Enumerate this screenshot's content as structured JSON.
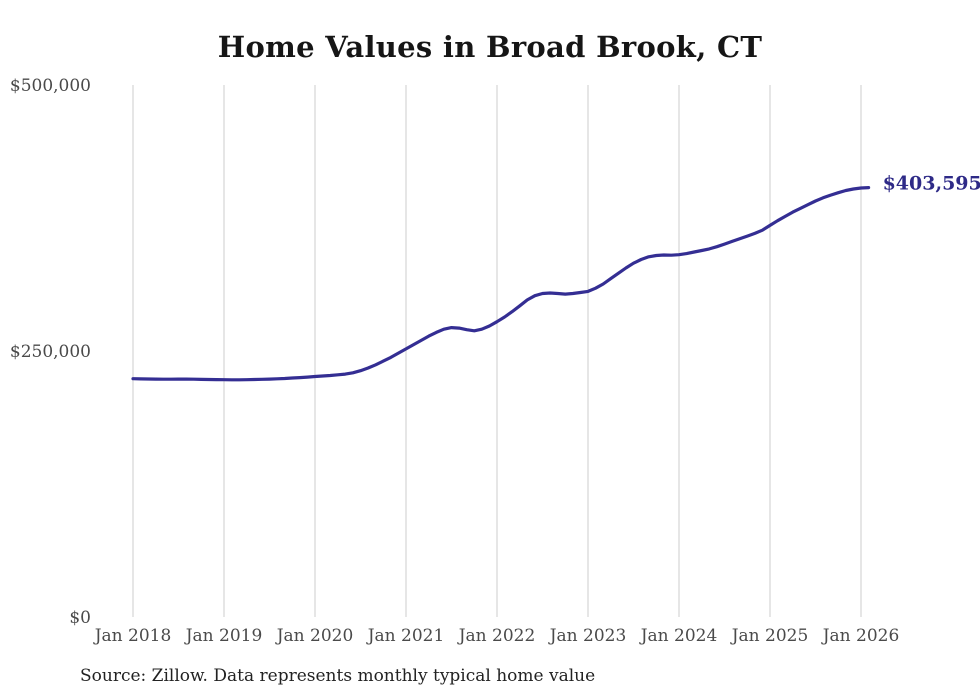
{
  "title": "Home Values in Broad Brook, CT",
  "source_note": "Source: Zillow. Data represents monthly typical home value",
  "final_value_label": "$403,595",
  "colors": {
    "line": "#342e93",
    "final_label": "#2e2a87",
    "gridline": "#cccccc",
    "tick_label": "#4a4a4a",
    "title": "#161616",
    "source": "#222222",
    "background": "#ffffff"
  },
  "chart_data": {
    "type": "line",
    "title": "Home Values in Broad Brook, CT",
    "series_name": "Monthly typical home value",
    "grid": "vertical-only",
    "legend": "none",
    "ylim": [
      0,
      500000
    ],
    "y_ticks": [
      {
        "value": 0,
        "label": "$0"
      },
      {
        "value": 250000,
        "label": "$250,000"
      },
      {
        "value": 500000,
        "label": "$500,000"
      }
    ],
    "x_tick_labels": [
      "Jan 2018",
      "Jan 2019",
      "Jan 2020",
      "Jan 2021",
      "Jan 2022",
      "Jan 2023",
      "Jan 2024",
      "Jan 2025",
      "Jan 2026"
    ],
    "annotation": {
      "text": "$403,595",
      "position": "last-point"
    },
    "x": [
      "Jan 2018",
      "Feb 2018",
      "Mar 2018",
      "Apr 2018",
      "May 2018",
      "Jun 2018",
      "Jul 2018",
      "Aug 2018",
      "Sep 2018",
      "Oct 2018",
      "Nov 2018",
      "Dec 2018",
      "Jan 2019",
      "Feb 2019",
      "Mar 2019",
      "Apr 2019",
      "May 2019",
      "Jun 2019",
      "Jul 2019",
      "Aug 2019",
      "Sep 2019",
      "Oct 2019",
      "Nov 2019",
      "Dec 2019",
      "Jan 2020",
      "Feb 2020",
      "Mar 2020",
      "Apr 2020",
      "May 2020",
      "Jun 2020",
      "Jul 2020",
      "Aug 2020",
      "Sep 2020",
      "Oct 2020",
      "Nov 2020",
      "Dec 2020",
      "Jan 2021",
      "Feb 2021",
      "Mar 2021",
      "Apr 2021",
      "May 2021",
      "Jun 2021",
      "Jul 2021",
      "Aug 2021",
      "Sep 2021",
      "Oct 2021",
      "Nov 2021",
      "Dec 2021",
      "Jan 2022",
      "Feb 2022",
      "Mar 2022",
      "Apr 2022",
      "May 2022",
      "Jun 2022",
      "Jul 2022",
      "Aug 2022",
      "Sep 2022",
      "Oct 2022",
      "Nov 2022",
      "Dec 2022",
      "Jan 2023",
      "Feb 2023",
      "Mar 2023",
      "Apr 2023",
      "May 2023",
      "Jun 2023",
      "Jul 2023",
      "Aug 2023",
      "Sep 2023",
      "Oct 2023",
      "Nov 2023",
      "Dec 2023",
      "Jan 2024",
      "Feb 2024",
      "Mar 2024",
      "Apr 2024",
      "May 2024",
      "Jun 2024",
      "Jul 2024",
      "Aug 2024",
      "Sep 2024",
      "Oct 2024",
      "Nov 2024",
      "Dec 2024",
      "Jan 2025",
      "Feb 2025",
      "Mar 2025",
      "Apr 2025",
      "May 2025",
      "Jun 2025",
      "Jul 2025",
      "Aug 2025",
      "Sep 2025",
      "Oct 2025",
      "Nov 2025",
      "Dec 2025",
      "Jan 2026",
      "Feb 2026"
    ],
    "values": [
      224000,
      223800,
      223700,
      223600,
      223500,
      223500,
      223600,
      223600,
      223500,
      223300,
      223200,
      223100,
      223000,
      222900,
      222900,
      223000,
      223200,
      223400,
      223600,
      223900,
      224200,
      224600,
      225000,
      225500,
      226000,
      226500,
      227000,
      227600,
      228300,
      229500,
      231500,
      234000,
      237000,
      240500,
      244000,
      248000,
      252000,
      256000,
      260000,
      264000,
      267500,
      270500,
      272000,
      271500,
      270000,
      269000,
      270500,
      273500,
      277500,
      282000,
      287000,
      292500,
      298000,
      302000,
      304000,
      304500,
      304000,
      303500,
      304000,
      305000,
      306000,
      309000,
      313000,
      318000,
      323000,
      328000,
      332500,
      336000,
      338500,
      339800,
      340200,
      340000,
      340500,
      341500,
      343000,
      344500,
      346000,
      348000,
      350500,
      353000,
      355500,
      358000,
      360500,
      363500,
      368000,
      372500,
      376500,
      380500,
      384000,
      387500,
      391000,
      394000,
      396500,
      398800,
      400800,
      402300,
      403200,
      403595
    ]
  }
}
